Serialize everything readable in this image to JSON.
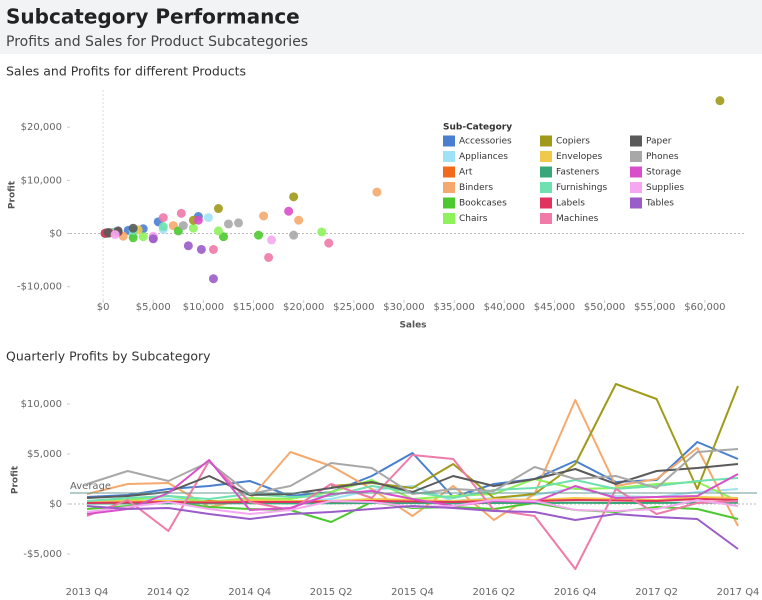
{
  "header": {
    "title": "Subcategory Performance",
    "subtitle": "Profits and Sales for Product Subcategories"
  },
  "chart_data": [
    {
      "type": "scatter",
      "title": "Sales and Profits for different Products",
      "x_label": "Sales",
      "y_label": "Profit",
      "legend_title": "Sub-Category",
      "legend_position": "top-right",
      "xlim": [
        -3300,
        64000
      ],
      "xticks": [
        {
          "value": 0,
          "label": "$0"
        },
        {
          "value": 5000,
          "label": "$5,000"
        },
        {
          "value": 10000,
          "label": "$10,000"
        },
        {
          "value": 15000,
          "label": "$15,000"
        },
        {
          "value": 20000,
          "label": "$20,000"
        },
        {
          "value": 25000,
          "label": "$25,000"
        },
        {
          "value": 30000,
          "label": "$30,000"
        },
        {
          "value": 35000,
          "label": "$35,000"
        },
        {
          "value": 40000,
          "label": "$40,000"
        },
        {
          "value": 45000,
          "label": "$45,000"
        },
        {
          "value": 50000,
          "label": "$50,000"
        },
        {
          "value": 55000,
          "label": "$55,000"
        },
        {
          "value": 60000,
          "label": "$60,000"
        }
      ],
      "ylim": [
        -12500,
        27000
      ],
      "yticks": [
        {
          "value": -10000,
          "label": "-$10,000"
        },
        {
          "value": 0,
          "label": "$0"
        },
        {
          "value": 10000,
          "label": "$10,000"
        },
        {
          "value": 20000,
          "label": "$20,000"
        }
      ],
      "series": [
        {
          "name": "Accessories",
          "color": "#4a7fcf",
          "x": [
            300,
            1200,
            2500,
            4000,
            5500,
            9500
          ],
          "values": [
            100,
            300,
            600,
            900,
            2200,
            3200
          ]
        },
        {
          "name": "Appliances",
          "color": "#9fe2f5",
          "x": [
            1000,
            3000,
            6000,
            10500
          ],
          "values": [
            200,
            -300,
            800,
            3000
          ]
        },
        {
          "name": "Art",
          "color": "#f26b1d",
          "x": [
            200,
            800,
            1500
          ],
          "values": [
            50,
            150,
            300
          ]
        },
        {
          "name": "Binders",
          "color": "#f6a96c",
          "x": [
            2000,
            7000,
            16000,
            19500,
            27300
          ],
          "values": [
            -500,
            1500,
            3300,
            2500,
            7800
          ]
        },
        {
          "name": "Bookcases",
          "color": "#4cc92f",
          "x": [
            3000,
            7500,
            12000,
            15500
          ],
          "values": [
            -800,
            500,
            -600,
            -300
          ]
        },
        {
          "name": "Chairs",
          "color": "#8ef25b",
          "x": [
            4000,
            9000,
            11500,
            21800
          ],
          "values": [
            -600,
            1000,
            500,
            300
          ]
        },
        {
          "name": "Copiers",
          "color": "#a09a1a",
          "x": [
            9000,
            11500,
            19000,
            61500
          ],
          "values": [
            2500,
            4700,
            6900,
            25000
          ]
        },
        {
          "name": "Envelopes",
          "color": "#f0c84a",
          "x": [
            500,
            1500,
            3500
          ],
          "values": [
            100,
            300,
            700
          ]
        },
        {
          "name": "Fasteners",
          "color": "#3aa77a",
          "x": [
            200,
            500
          ],
          "values": [
            20,
            50
          ]
        },
        {
          "name": "Furnishings",
          "color": "#6fe0b0",
          "x": [
            1000,
            3000,
            6000
          ],
          "values": [
            200,
            600,
            1300
          ]
        },
        {
          "name": "Labels",
          "color": "#e0335e",
          "x": [
            200,
            600,
            1500
          ],
          "values": [
            50,
            150,
            300
          ]
        },
        {
          "name": "Machines",
          "color": "#f07aa8",
          "x": [
            6000,
            7800,
            11000,
            16500,
            22500
          ],
          "values": [
            3000,
            3800,
            -3000,
            -4500,
            -1800
          ]
        },
        {
          "name": "Paper",
          "color": "#5a5a5a",
          "x": [
            500,
            1500,
            3000
          ],
          "values": [
            200,
            500,
            1000
          ]
        },
        {
          "name": "Phones",
          "color": "#a8a8a8",
          "x": [
            8000,
            12500,
            13500,
            19000
          ],
          "values": [
            1500,
            1800,
            2000,
            -300
          ]
        },
        {
          "name": "Storage",
          "color": "#d94fc9",
          "x": [
            5000,
            9500,
            18500
          ],
          "values": [
            -800,
            2500,
            4200
          ]
        },
        {
          "name": "Supplies",
          "color": "#f5a8f0",
          "x": [
            1200,
            5000,
            16800
          ],
          "values": [
            -200,
            -500,
            -1200
          ]
        },
        {
          "name": "Tables",
          "color": "#9a5cc9",
          "x": [
            5000,
            8500,
            9800,
            11000
          ],
          "values": [
            -1000,
            -2300,
            -3000,
            -8500
          ]
        }
      ]
    },
    {
      "type": "line",
      "title": "Quarterly Profits by Subcategory",
      "y_label": "Profit",
      "categories": [
        "2013 Q4",
        null,
        "2014 Q2",
        null,
        "2014 Q4",
        null,
        "2015 Q2",
        null,
        "2015 Q4",
        null,
        "2016 Q2",
        null,
        "2016 Q4",
        null,
        "2017 Q2",
        null,
        "2017 Q4"
      ],
      "ylim": [
        -7600,
        12400
      ],
      "yticks": [
        {
          "value": -5000,
          "label": "-$5,000"
        },
        {
          "value": 0,
          "label": "$0"
        },
        {
          "value": 5000,
          "label": "$5,000"
        },
        {
          "value": 10000,
          "label": "$10,000"
        }
      ],
      "reference_line": {
        "label": "Average",
        "value": 1100
      },
      "series": [
        {
          "color": "#4a7fcf",
          "values": [
            700,
            900,
            1500,
            1800,
            2300,
            800,
            1200,
            2800,
            5100,
            700,
            2000,
            2500,
            4300,
            2200,
            2400,
            6200,
            4500
          ]
        },
        {
          "color": "#9fe2f5",
          "values": [
            200,
            300,
            500,
            200,
            600,
            200,
            500,
            1400,
            1800,
            300,
            600,
            900,
            1600,
            800,
            700,
            1200,
            1500
          ]
        },
        {
          "color": "#f26b1d",
          "values": [
            100,
            200,
            200,
            300,
            300,
            200,
            300,
            400,
            300,
            200,
            400,
            300,
            400,
            400,
            300,
            600,
            500
          ]
        },
        {
          "color": "#f6a96c",
          "values": [
            1000,
            2000,
            2100,
            -300,
            500,
            5200,
            3800,
            1500,
            -1200,
            1800,
            -1600,
            1000,
            10400,
            1800,
            2500,
            5600,
            -2200
          ]
        },
        {
          "color": "#4cc92f",
          "values": [
            -500,
            -200,
            200,
            -300,
            -500,
            -600,
            -1800,
            200,
            -400,
            -300,
            -500,
            100,
            -600,
            -800,
            -300,
            -500,
            -1500
          ]
        },
        {
          "color": "#8ef25b",
          "values": [
            300,
            400,
            800,
            200,
            600,
            500,
            1200,
            2400,
            500,
            800,
            1000,
            2500,
            1500,
            1600,
            2000,
            2200,
            300
          ]
        },
        {
          "color": "#a09a1a",
          "values": [
            null,
            null,
            null,
            null,
            null,
            null,
            1800,
            2100,
            1600,
            4000,
            600,
            1000,
            4000,
            12000,
            10500,
            1500,
            11800
          ]
        },
        {
          "color": "#f0c84a",
          "values": [
            200,
            300,
            300,
            200,
            400,
            300,
            300,
            500,
            400,
            300,
            500,
            400,
            600,
            500,
            400,
            700,
            600
          ]
        },
        {
          "color": "#3aa77a",
          "values": [
            50,
            50,
            80,
            60,
            70,
            60,
            80,
            100,
            90,
            80,
            100,
            90,
            120,
            100,
            110,
            130,
            120
          ]
        },
        {
          "color": "#6fe0b0",
          "values": [
            300,
            600,
            800,
            500,
            1000,
            700,
            800,
            1800,
            1200,
            600,
            1400,
            1600,
            2400,
            1500,
            1800,
            2300,
            2600
          ]
        },
        {
          "color": "#e0335e",
          "values": [
            100,
            150,
            200,
            150,
            200,
            200,
            250,
            300,
            250,
            200,
            300,
            300,
            400,
            350,
            300,
            500,
            400
          ]
        },
        {
          "color": "#f07aa8",
          "values": [
            -1200,
            400,
            -2700,
            4300,
            200,
            -600,
            2000,
            600,
            4900,
            4500,
            -600,
            -1200,
            -6500,
            1500,
            -1000,
            100,
            300
          ]
        },
        {
          "color": "#5a5a5a",
          "values": [
            600,
            800,
            1200,
            2800,
            900,
            1000,
            1600,
            2200,
            1200,
            2800,
            1800,
            2500,
            3500,
            2000,
            3300,
            3600,
            4000
          ]
        },
        {
          "color": "#a8a8a8",
          "values": [
            2000,
            3300,
            2300,
            4200,
            1000,
            1800,
            4100,
            3600,
            1000,
            1500,
            1300,
            3700,
            2500,
            2800,
            1600,
            5200,
            5500
          ]
        },
        {
          "color": "#d94fc9",
          "values": [
            -1000,
            -500,
            1100,
            4400,
            -600,
            -400,
            1000,
            1300,
            500,
            -200,
            300,
            200,
            1800,
            600,
            700,
            800,
            3000
          ]
        },
        {
          "color": "#f5a8f0",
          "values": [
            -800,
            -300,
            200,
            -500,
            -1000,
            -600,
            300,
            200,
            -300,
            -200,
            400,
            300,
            -600,
            -700,
            -500,
            400,
            -200
          ]
        },
        {
          "color": "#9a5cc9",
          "values": [
            -200,
            -500,
            -400,
            -1000,
            -1500,
            -1000,
            -800,
            -500,
            -200,
            -400,
            -700,
            -800,
            -1600,
            -1000,
            -1300,
            -1500,
            -4500
          ]
        }
      ]
    }
  ]
}
